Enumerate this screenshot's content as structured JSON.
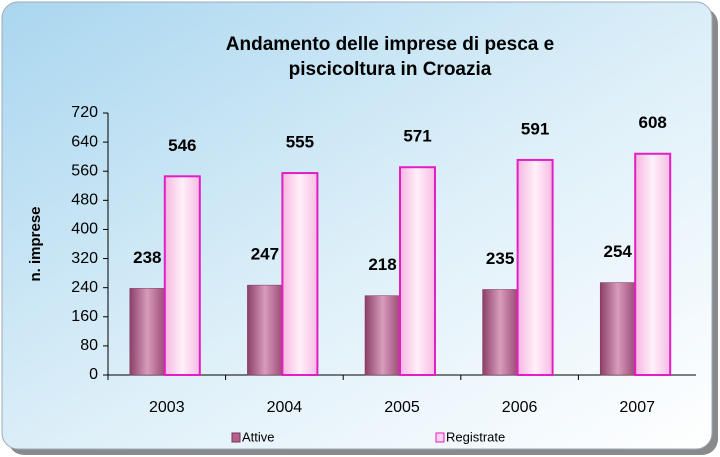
{
  "chart_data": {
    "type": "bar",
    "title": [
      "Andamento delle imprese di pesca e",
      "piscicoltura in Croazia"
    ],
    "y_label": "n. imprese",
    "categories": [
      "2003",
      "2004",
      "2005",
      "2006",
      "2007"
    ],
    "series": [
      {
        "name": "Attive",
        "color": "#b4608c",
        "values": [
          238,
          247,
          218,
          235,
          254
        ]
      },
      {
        "name": "Registrate",
        "color": "#fcd2ee",
        "values": [
          546,
          555,
          571,
          591,
          608
        ]
      }
    ],
    "ylim": [
      0,
      720
    ],
    "yticks": [
      0,
      80,
      160,
      240,
      320,
      400,
      480,
      560,
      640,
      720
    ],
    "grid": false,
    "legend": "bottom"
  }
}
